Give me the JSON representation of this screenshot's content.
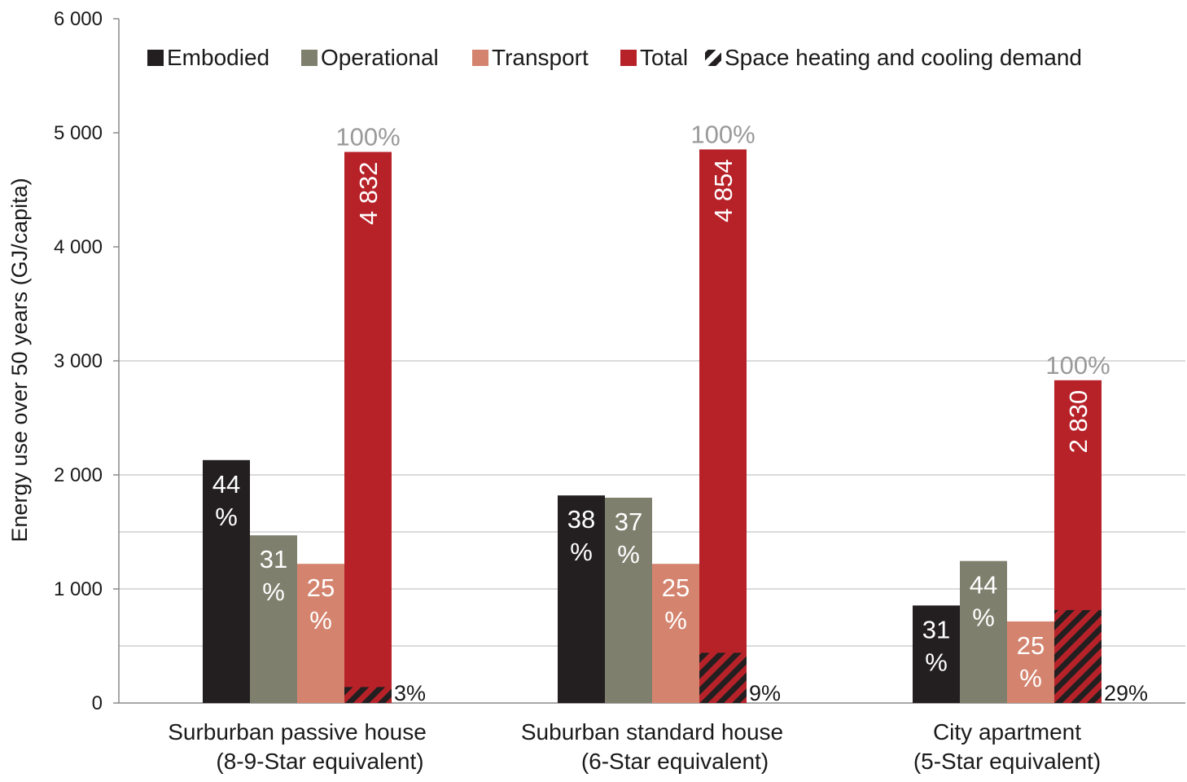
{
  "chart_data": {
    "type": "bar",
    "ylabel": "Energy use over 50 years (GJ/capita)",
    "ylim": [
      0,
      6000
    ],
    "yticks": [
      0,
      1000,
      2000,
      3000,
      4000,
      5000,
      6000
    ],
    "ytick_labels": [
      "0",
      "1 000",
      "2 000",
      "3 000",
      "4 000",
      "5 000",
      "6 000"
    ],
    "grid": "horizontal lines at 1000-unit steps, lower region",
    "legend_position": "top",
    "categories": [
      {
        "line1": "Surburban passive house",
        "line2": "(8-9-Star equivalent)"
      },
      {
        "line1": "Suburban standard house",
        "line2": "(6-Star equivalent)"
      },
      {
        "line1": "City apartment",
        "line2": "(5-Star equivalent)"
      }
    ],
    "series": [
      {
        "name": "Embodied",
        "color": "#231f20",
        "values": [
          2130,
          1820,
          855
        ],
        "labels": [
          [
            "44",
            "%"
          ],
          [
            "38",
            "%"
          ],
          [
            "31",
            "%"
          ]
        ]
      },
      {
        "name": "Operational",
        "color": "#7f7f6e",
        "values": [
          1470,
          1800,
          1245
        ],
        "labels": [
          [
            "31",
            "%"
          ],
          [
            "37",
            "%"
          ],
          [
            "44",
            "%"
          ]
        ]
      },
      {
        "name": "Transport",
        "color": "#d4846e",
        "values": [
          1220,
          1220,
          715
        ],
        "labels": [
          [
            "25",
            "%"
          ],
          [
            "25",
            "%"
          ],
          [
            "25",
            "%"
          ]
        ]
      },
      {
        "name": "Total",
        "color": "#b72229",
        "values": [
          4832,
          4854,
          2830
        ],
        "labels": [
          "4 832",
          "4 854",
          "2 830"
        ],
        "top_labels": [
          "100%",
          "100%",
          "100%"
        ]
      }
    ],
    "space_heating": {
      "name": "Space heating and cooling demand",
      "values": [
        140,
        440,
        815
      ],
      "labels": [
        "3%",
        "9%",
        "29%"
      ]
    }
  }
}
